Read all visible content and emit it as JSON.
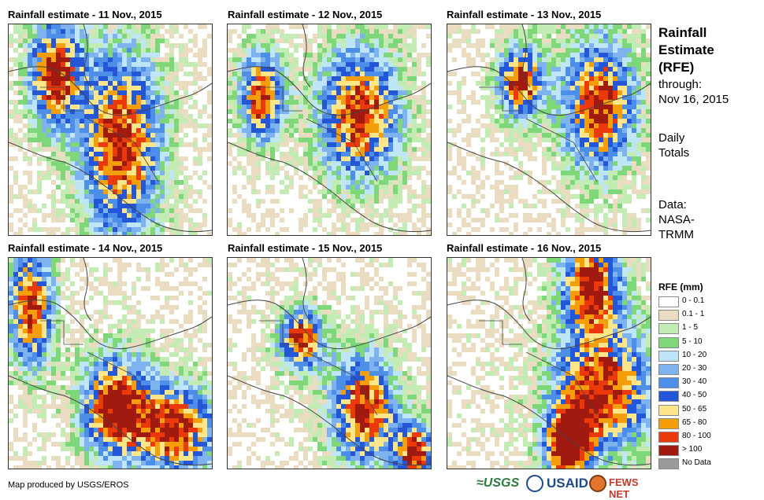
{
  "panels": [
    {
      "title": "Rainfall estimate - 11 Nov., 2015"
    },
    {
      "title": "Rainfall estimate - 12 Nov., 2015"
    },
    {
      "title": "Rainfall estimate - 13 Nov., 2015"
    },
    {
      "title": "Rainfall estimate - 14 Nov., 2015"
    },
    {
      "title": "Rainfall estimate - 15 Nov., 2015"
    },
    {
      "title": "Rainfall estimate - 16 Nov., 2015"
    }
  ],
  "side": {
    "title_line1": "Rainfall",
    "title_line2": "Estimate",
    "title_line3": "(RFE)",
    "through_label": "through:",
    "through_date": "Nov 16, 2015",
    "totals_line1": "Daily",
    "totals_line2": "Totals",
    "data_label": "Data:",
    "data_line1": "NASA-",
    "data_line2": "TRMM"
  },
  "legend": {
    "title": "RFE (mm)",
    "items": [
      {
        "label": "0 - 0.1",
        "color": "#ffffff"
      },
      {
        "label": "0.1 - 1",
        "color": "#e9dcc0"
      },
      {
        "label": "1 - 5",
        "color": "#c3ecb4"
      },
      {
        "label": "5 - 10",
        "color": "#7ed87a"
      },
      {
        "label": "10 - 20",
        "color": "#bfe6f7"
      },
      {
        "label": "20 - 30",
        "color": "#7fb3ef"
      },
      {
        "label": "30 - 40",
        "color": "#4d8ee8"
      },
      {
        "label": "40 - 50",
        "color": "#2456d8"
      },
      {
        "label": "50 - 65",
        "color": "#fde68a"
      },
      {
        "label": "65 - 80",
        "color": "#f59e0b"
      },
      {
        "label": "80 - 100",
        "color": "#ea3a0c"
      },
      {
        "label": "> 100",
        "color": "#a01a10"
      },
      {
        "label": "No Data",
        "color": "#9a9a9a"
      }
    ]
  },
  "footer": {
    "credit": "Map produced by USGS/EROS",
    "logo_usgs": "≈USGS",
    "logo_usaid": "USAID",
    "logo_fews": "FEWS NET"
  }
}
